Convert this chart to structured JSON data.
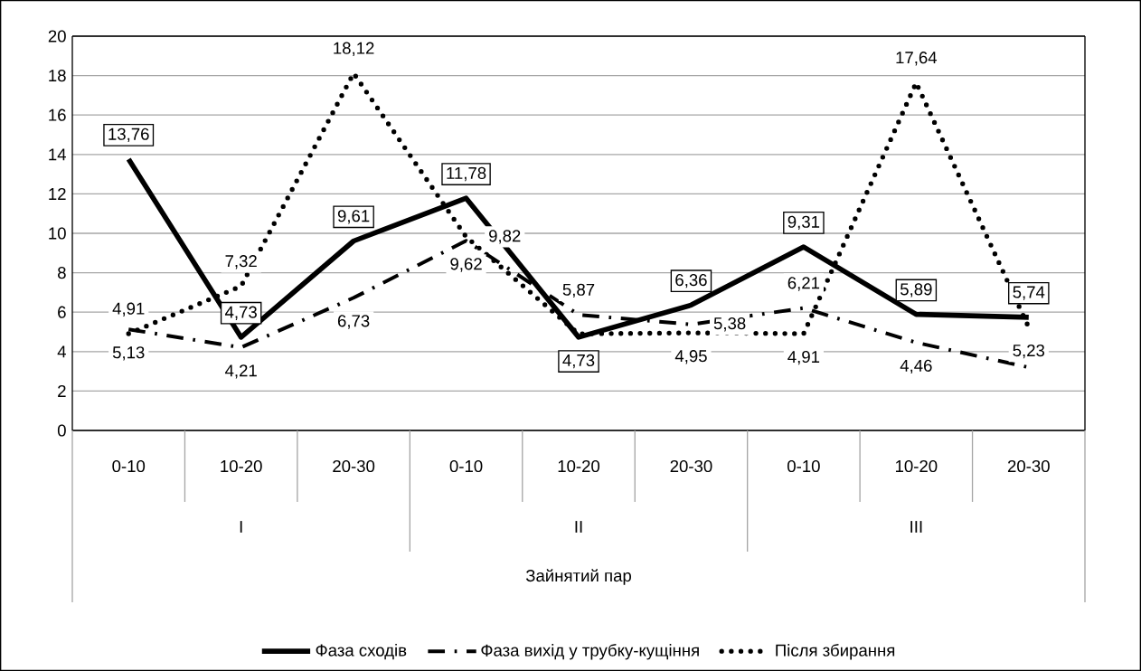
{
  "chart_data": {
    "type": "line",
    "categories": [
      "0-10",
      "10-20",
      "20-30",
      "0-10",
      "10-20",
      "20-30",
      "0-10",
      "10-20",
      "20-30"
    ],
    "annotations": [
      "I",
      "II",
      "III",
      "Зайнятий пар"
    ],
    "ylim": [
      0,
      20
    ],
    "yticks": [
      0,
      2,
      4,
      6,
      8,
      10,
      12,
      14,
      16,
      18,
      20
    ],
    "grid": "y",
    "legend": "bottom",
    "marker": "none",
    "series": [
      {
        "name": "Фаза сходів",
        "color": "#000000",
        "line_style": "solid",
        "values": [
          13.76,
          4.73,
          9.61,
          11.78,
          4.73,
          6.36,
          9.31,
          5.89,
          5.74
        ],
        "value_labels": [
          "13,76",
          "4,73",
          "9,61",
          "11,78",
          "4,73",
          "6,36",
          "9,31",
          "5,89",
          "5,74"
        ]
      },
      {
        "name": "Фаза вихід у трубку-кущіння",
        "color": "#000000",
        "line_style": "dashed",
        "values": [
          5.13,
          4.21,
          6.73,
          9.62,
          5.87,
          5.38,
          6.21,
          4.46,
          3.2
        ],
        "value_labels": [
          "5,13",
          "4,21",
          "6,73",
          "9,62",
          "5,87",
          "5,38",
          "6,21",
          "4,46",
          null
        ]
      },
      {
        "name": "Після збирання",
        "color": "#000000",
        "line_style": "dotted",
        "values": [
          4.91,
          7.32,
          18.12,
          9.82,
          4.9,
          4.95,
          4.91,
          17.64,
          5.23
        ],
        "value_labels": [
          "4,91",
          "7,32",
          "18,12",
          "9,82",
          null,
          "4,95",
          "4,91",
          "17,64",
          "5,23"
        ]
      }
    ]
  }
}
